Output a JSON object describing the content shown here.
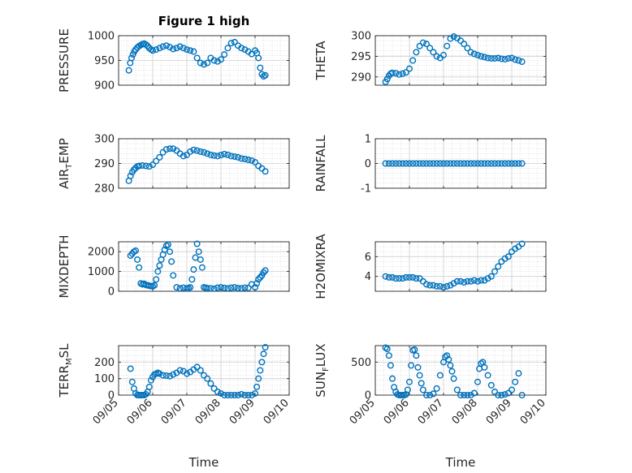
{
  "figure": {
    "title": "Figure 1 high"
  },
  "colors": {
    "marker": "#0072BD",
    "axis": "#262626",
    "grid": "#d0d0d0"
  },
  "chart_data": [
    {
      "type": "scatter",
      "name": "pressure",
      "ylabel": "PRESSURE",
      "ylabel_sub": "",
      "ylabel_tail": "",
      "title": "Figure 1 high",
      "ylim": [
        900,
        1000
      ],
      "yticks": [
        900,
        950,
        1000
      ],
      "ytick_labels": [
        "900",
        "950",
        "1000"
      ],
      "xlim": [
        0,
        5
      ],
      "xlabel": "",
      "show_xticklabels": false,
      "x": [
        0.3,
        0.34,
        0.38,
        0.42,
        0.46,
        0.5,
        0.55,
        0.6,
        0.65,
        0.7,
        0.75,
        0.8,
        0.85,
        0.9,
        0.95,
        1.0,
        1.1,
        1.2,
        1.3,
        1.4,
        1.5,
        1.6,
        1.7,
        1.8,
        1.9,
        2.0,
        2.1,
        2.2,
        2.3,
        2.4,
        2.5,
        2.6,
        2.7,
        2.8,
        2.9,
        3.0,
        3.1,
        3.2,
        3.3,
        3.4,
        3.5,
        3.6,
        3.7,
        3.8,
        3.9,
        4.0,
        4.05,
        4.1,
        4.15,
        4.2,
        4.25,
        4.3
      ],
      "y": [
        930,
        945,
        955,
        962,
        968,
        972,
        976,
        979,
        981,
        983,
        984,
        982,
        979,
        975,
        972,
        970,
        972,
        975,
        978,
        980,
        977,
        973,
        975,
        978,
        975,
        972,
        970,
        968,
        955,
        945,
        942,
        945,
        955,
        950,
        948,
        952,
        962,
        975,
        985,
        987,
        980,
        975,
        972,
        968,
        963,
        970,
        965,
        955,
        935,
        922,
        918,
        920
      ]
    },
    {
      "type": "scatter",
      "name": "theta",
      "ylabel": "THETA",
      "ylabel_sub": "",
      "ylabel_tail": "",
      "title": "",
      "ylim": [
        288,
        300
      ],
      "yticks": [
        290,
        295,
        300
      ],
      "ytick_labels": [
        "290",
        "295",
        "300"
      ],
      "xlim": [
        0,
        5
      ],
      "xlabel": "",
      "show_xticklabels": false,
      "x": [
        0.3,
        0.35,
        0.4,
        0.45,
        0.5,
        0.6,
        0.7,
        0.8,
        0.9,
        1.0,
        1.1,
        1.2,
        1.3,
        1.4,
        1.5,
        1.6,
        1.7,
        1.8,
        1.9,
        2.0,
        2.1,
        2.2,
        2.3,
        2.4,
        2.5,
        2.6,
        2.7,
        2.8,
        2.9,
        3.0,
        3.1,
        3.2,
        3.3,
        3.4,
        3.5,
        3.6,
        3.7,
        3.8,
        3.9,
        4.0,
        4.1,
        4.2,
        4.3
      ],
      "y": [
        288.8,
        289.5,
        290.3,
        290.8,
        291.0,
        290.9,
        290.6,
        290.8,
        291.1,
        292.0,
        294.0,
        296.0,
        297.5,
        298.3,
        298.0,
        297.0,
        296.0,
        295.0,
        294.6,
        295.3,
        297.5,
        299.3,
        299.8,
        299.4,
        298.8,
        298.0,
        297.0,
        296.0,
        295.6,
        295.3,
        295.0,
        294.8,
        294.6,
        294.5,
        294.5,
        294.6,
        294.4,
        294.3,
        294.5,
        294.6,
        294.2,
        294.0,
        293.7
      ]
    },
    {
      "type": "scatter",
      "name": "air_temp",
      "ylabel": "AIR",
      "ylabel_sub": "T",
      "ylabel_tail": "EMP",
      "title": "",
      "ylim": [
        280,
        300
      ],
      "yticks": [
        280,
        290,
        300
      ],
      "ytick_labels": [
        "280",
        "290",
        "300"
      ],
      "xlim": [
        0,
        5
      ],
      "xlabel": "",
      "show_xticklabels": false,
      "x": [
        0.3,
        0.35,
        0.4,
        0.45,
        0.5,
        0.55,
        0.6,
        0.7,
        0.8,
        0.9,
        1.0,
        1.1,
        1.2,
        1.3,
        1.4,
        1.5,
        1.6,
        1.7,
        1.8,
        1.9,
        2.0,
        2.1,
        2.2,
        2.3,
        2.4,
        2.5,
        2.6,
        2.7,
        2.8,
        2.9,
        3.0,
        3.1,
        3.2,
        3.3,
        3.4,
        3.5,
        3.6,
        3.7,
        3.8,
        3.9,
        4.0,
        4.1,
        4.2,
        4.3
      ],
      "y": [
        283.0,
        285.0,
        286.5,
        287.5,
        288.2,
        288.8,
        289.0,
        289.2,
        289.0,
        288.8,
        289.5,
        291.0,
        292.5,
        294.5,
        295.7,
        296.0,
        296.0,
        295.2,
        294.0,
        293.0,
        293.5,
        294.8,
        295.5,
        295.2,
        294.8,
        294.5,
        294.0,
        293.5,
        293.2,
        293.0,
        293.4,
        293.8,
        293.5,
        293.0,
        292.8,
        292.5,
        292.0,
        291.8,
        291.5,
        291.2,
        290.5,
        289.0,
        288.0,
        286.8
      ]
    },
    {
      "type": "scatter",
      "name": "rainfall",
      "ylabel": "RAINFALL",
      "ylabel_sub": "",
      "ylabel_tail": "",
      "title": "",
      "ylim": [
        -1,
        1
      ],
      "yticks": [
        -1,
        0,
        1
      ],
      "ytick_labels": [
        "-1",
        "0",
        "1"
      ],
      "xlim": [
        0,
        5
      ],
      "xlabel": "",
      "show_xticklabels": false,
      "x": [
        0.3,
        0.4,
        0.5,
        0.6,
        0.7,
        0.8,
        0.9,
        1.0,
        1.1,
        1.2,
        1.3,
        1.4,
        1.5,
        1.6,
        1.7,
        1.8,
        1.9,
        2.0,
        2.1,
        2.2,
        2.3,
        2.4,
        2.5,
        2.6,
        2.7,
        2.8,
        2.9,
        3.0,
        3.1,
        3.2,
        3.3,
        3.4,
        3.5,
        3.6,
        3.7,
        3.8,
        3.9,
        4.0,
        4.1,
        4.2,
        4.3
      ],
      "y": [
        0,
        0,
        0,
        0,
        0,
        0,
        0,
        0,
        0,
        0,
        0,
        0,
        0,
        0,
        0,
        0,
        0,
        0,
        0,
        0,
        0,
        0,
        0,
        0,
        0,
        0,
        0,
        0,
        0,
        0,
        0,
        0,
        0,
        0,
        0,
        0,
        0,
        0,
        0,
        0,
        0
      ]
    },
    {
      "type": "scatter",
      "name": "mixdepth",
      "ylabel": "MIXDEPTH",
      "ylabel_sub": "",
      "ylabel_tail": "",
      "title": "",
      "ylim": [
        0,
        2500
      ],
      "yticks": [
        0,
        1000,
        2000
      ],
      "ytick_labels": [
        "0",
        "1000",
        "2000"
      ],
      "xlim": [
        0,
        5
      ],
      "xlabel": "",
      "show_xticklabels": false,
      "x": [
        0.35,
        0.4,
        0.45,
        0.5,
        0.55,
        0.6,
        0.65,
        0.7,
        0.75,
        0.8,
        0.85,
        0.9,
        0.95,
        1.0,
        1.05,
        1.1,
        1.15,
        1.2,
        1.25,
        1.3,
        1.35,
        1.4,
        1.45,
        1.5,
        1.55,
        1.6,
        1.7,
        1.8,
        1.9,
        2.0,
        2.05,
        2.1,
        2.15,
        2.2,
        2.25,
        2.3,
        2.35,
        2.4,
        2.45,
        2.5,
        2.55,
        2.6,
        2.7,
        2.8,
        2.9,
        3.0,
        3.1,
        3.2,
        3.3,
        3.4,
        3.5,
        3.6,
        3.7,
        3.8,
        3.9,
        4.0,
        4.05,
        4.1,
        4.15,
        4.2,
        4.25,
        4.3
      ],
      "y": [
        1800,
        1900,
        2000,
        2050,
        1600,
        1200,
        400,
        350,
        380,
        320,
        300,
        280,
        260,
        250,
        300,
        600,
        1000,
        1300,
        1600,
        1850,
        2100,
        2300,
        2350,
        2000,
        1500,
        800,
        200,
        150,
        180,
        150,
        160,
        200,
        600,
        1100,
        1700,
        2400,
        2000,
        1600,
        1200,
        200,
        180,
        160,
        150,
        130,
        180,
        200,
        170,
        150,
        180,
        200,
        160,
        150,
        180,
        170,
        350,
        200,
        400,
        600,
        700,
        800,
        950,
        1050
      ]
    },
    {
      "type": "scatter",
      "name": "h2omixra",
      "ylabel": "H2OMIXRA",
      "ylabel_sub": "",
      "ylabel_tail": "",
      "title": "",
      "ylim": [
        2.5,
        7.5
      ],
      "yticks": [
        4,
        6
      ],
      "ytick_labels": [
        "4",
        "6"
      ],
      "xlim": [
        0,
        5
      ],
      "xlabel": "",
      "show_xticklabels": false,
      "x": [
        0.3,
        0.4,
        0.5,
        0.6,
        0.7,
        0.8,
        0.9,
        1.0,
        1.1,
        1.2,
        1.3,
        1.4,
        1.5,
        1.6,
        1.7,
        1.8,
        1.9,
        2.0,
        2.1,
        2.2,
        2.3,
        2.4,
        2.5,
        2.6,
        2.7,
        2.8,
        2.9,
        3.0,
        3.1,
        3.2,
        3.3,
        3.4,
        3.5,
        3.6,
        3.7,
        3.8,
        3.9,
        4.0,
        4.1,
        4.2,
        4.3
      ],
      "y": [
        4.0,
        3.9,
        3.9,
        3.8,
        3.8,
        3.8,
        3.9,
        3.9,
        3.9,
        3.8,
        3.8,
        3.5,
        3.2,
        3.1,
        3.1,
        3.0,
        3.0,
        2.9,
        3.0,
        3.1,
        3.3,
        3.5,
        3.5,
        3.4,
        3.5,
        3.5,
        3.6,
        3.5,
        3.6,
        3.6,
        3.8,
        4.0,
        4.5,
        5.0,
        5.5,
        5.8,
        6.0,
        6.5,
        6.8,
        7.0,
        7.3
      ]
    },
    {
      "type": "scatter",
      "name": "terr_msl",
      "ylabel": "TERR",
      "ylabel_sub": "M",
      "ylabel_tail": "SL",
      "title": "",
      "ylim": [
        0,
        300
      ],
      "yticks": [
        0,
        100,
        200
      ],
      "ytick_labels": [
        "0",
        "100",
        "200"
      ],
      "xlim": [
        0,
        5
      ],
      "xlabel": "Time",
      "show_xticklabels": true,
      "xticks": [
        0,
        1,
        2,
        3,
        4,
        5
      ],
      "xtick_labels": [
        "09/05",
        "09/06",
        "09/07",
        "09/08",
        "09/09",
        "09/10"
      ],
      "x": [
        0.35,
        0.4,
        0.45,
        0.5,
        0.55,
        0.6,
        0.65,
        0.7,
        0.75,
        0.8,
        0.85,
        0.9,
        0.95,
        1.0,
        1.05,
        1.1,
        1.15,
        1.2,
        1.3,
        1.4,
        1.5,
        1.6,
        1.7,
        1.8,
        1.9,
        2.0,
        2.1,
        2.2,
        2.3,
        2.4,
        2.5,
        2.6,
        2.7,
        2.8,
        2.9,
        3.0,
        3.1,
        3.2,
        3.3,
        3.4,
        3.5,
        3.6,
        3.7,
        3.8,
        3.9,
        4.0,
        4.05,
        4.1,
        4.15,
        4.2,
        4.25,
        4.3
      ],
      "y": [
        160,
        80,
        40,
        10,
        0,
        0,
        0,
        0,
        0,
        5,
        20,
        50,
        90,
        110,
        125,
        130,
        135,
        130,
        120,
        118,
        115,
        125,
        135,
        150,
        145,
        130,
        140,
        155,
        170,
        150,
        120,
        100,
        70,
        40,
        20,
        10,
        0,
        0,
        0,
        0,
        0,
        5,
        0,
        0,
        0,
        10,
        50,
        100,
        150,
        200,
        250,
        290
      ]
    },
    {
      "type": "scatter",
      "name": "sun_flux",
      "ylabel": "SUN",
      "ylabel_sub": "F",
      "ylabel_tail": "LUX",
      "title": "",
      "ylim": [
        0,
        750
      ],
      "yticks": [
        0,
        500
      ],
      "ytick_labels": [
        "0",
        "500"
      ],
      "xlim": [
        0,
        5
      ],
      "xlabel": "Time",
      "show_xticklabels": true,
      "xticks": [
        0,
        1,
        2,
        3,
        4,
        5
      ],
      "xtick_labels": [
        "09/05",
        "09/06",
        "09/07",
        "09/08",
        "09/09",
        "09/10"
      ],
      "x": [
        0.3,
        0.35,
        0.4,
        0.45,
        0.5,
        0.55,
        0.6,
        0.65,
        0.7,
        0.75,
        0.8,
        0.85,
        0.9,
        0.95,
        1.0,
        1.05,
        1.1,
        1.15,
        1.2,
        1.25,
        1.3,
        1.35,
        1.4,
        1.5,
        1.6,
        1.7,
        1.8,
        1.9,
        2.0,
        2.05,
        2.1,
        2.15,
        2.2,
        2.25,
        2.3,
        2.4,
        2.5,
        2.6,
        2.7,
        2.8,
        2.9,
        3.0,
        3.05,
        3.1,
        3.15,
        3.2,
        3.3,
        3.4,
        3.5,
        3.6,
        3.7,
        3.8,
        3.9,
        4.0,
        4.1,
        4.2,
        4.3
      ],
      "y": [
        720,
        700,
        600,
        450,
        250,
        120,
        50,
        10,
        0,
        0,
        0,
        0,
        10,
        80,
        200,
        450,
        680,
        690,
        600,
        420,
        300,
        180,
        80,
        0,
        0,
        20,
        100,
        300,
        500,
        580,
        600,
        540,
        450,
        360,
        250,
        80,
        0,
        0,
        0,
        0,
        30,
        200,
        400,
        480,
        500,
        420,
        300,
        150,
        50,
        0,
        0,
        10,
        30,
        80,
        200,
        330,
        0
      ]
    }
  ]
}
